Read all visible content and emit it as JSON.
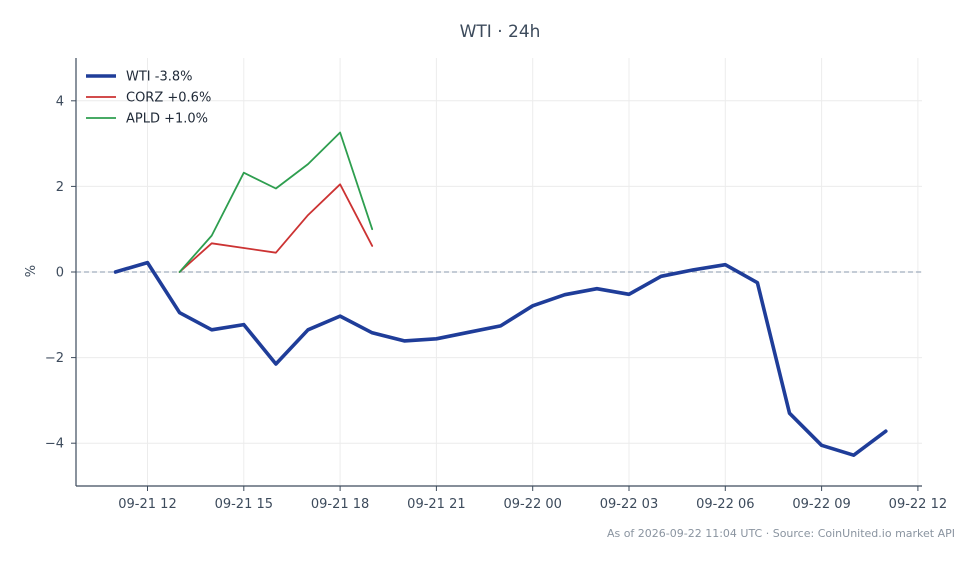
{
  "chart_data": {
    "type": "line",
    "title": "WTI · 24h",
    "ylabel": "%",
    "xlabel": "",
    "ylim": [
      -5,
      5
    ],
    "x_tick_labels": [
      "09-21 12",
      "09-21 15",
      "09-21 18",
      "09-21 21",
      "09-22 00",
      "09-22 03",
      "09-22 06",
      "09-22 09",
      "09-22 12"
    ],
    "y_ticks": [
      -4,
      -2,
      0,
      2,
      4
    ],
    "y_tick_labels": [
      "−4",
      "−2",
      "0",
      "2",
      "4"
    ],
    "grid": true,
    "legend_position": "top-left",
    "zero_line": true,
    "series": [
      {
        "name": "WTI -3.8%",
        "color": "#1f3d99",
        "hours_from_0921_12": [
          -1,
          0,
          1,
          2,
          3,
          4,
          5,
          6,
          7,
          8,
          9,
          10,
          11,
          12,
          13,
          14,
          15,
          16,
          17,
          18,
          19,
          20,
          21,
          22,
          23
        ],
        "values": [
          0.0,
          0.22,
          -0.95,
          -1.35,
          -1.23,
          -2.15,
          -1.35,
          -1.03,
          -1.42,
          -1.61,
          -1.56,
          -1.41,
          -1.26,
          -0.79,
          -0.53,
          -0.39,
          -0.52,
          -0.1,
          0.05,
          0.17,
          -0.25,
          -3.3,
          -4.05,
          -4.28,
          -3.72
        ]
      },
      {
        "name": "CORZ +0.6%",
        "color": "#cc3333",
        "hours_from_0921_12": [
          1,
          2,
          3,
          4,
          5,
          6,
          7
        ],
        "values": [
          0.0,
          0.67,
          0.56,
          0.45,
          1.33,
          2.05,
          0.61
        ]
      },
      {
        "name": "APLD +1.0%",
        "color": "#2e9e4f",
        "hours_from_0921_12": [
          1,
          2,
          3,
          4,
          5,
          6,
          7
        ],
        "values": [
          0.0,
          0.85,
          2.32,
          1.95,
          2.52,
          3.26,
          1.0
        ]
      }
    ]
  },
  "footer": "As of 2026-09-22 11:04 UTC · Source: CoinUnited.io market API"
}
